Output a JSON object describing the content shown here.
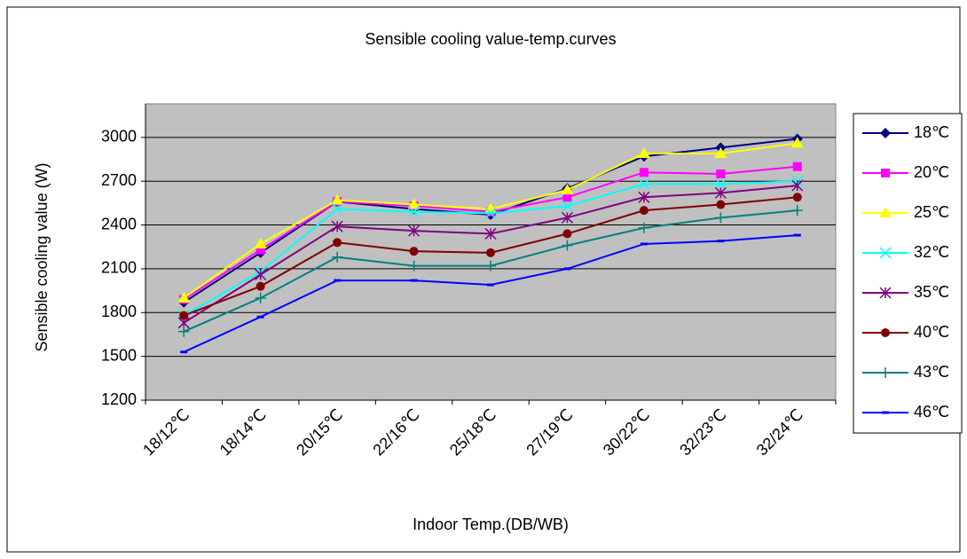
{
  "chart_data": {
    "type": "line",
    "title": "Sensible cooling value-temp.curves",
    "x_label": "Indoor Temp.(DB/WB)",
    "y_label": "Sensible cooling value (W)",
    "categories": [
      "18/12℃",
      "18/14℃",
      "20/15℃",
      "22/16℃",
      "25/18℃",
      "27/19℃",
      "30/22℃",
      "32/23℃",
      "32/24℃"
    ],
    "ylim": [
      1200,
      3230
    ],
    "yticks": [
      1200,
      1500,
      1800,
      2100,
      2400,
      2700,
      3000
    ],
    "grid": true,
    "legend": "right",
    "series": [
      {
        "name": "18℃",
        "color": "#000080",
        "marker": "diamond",
        "values": [
          1870,
          2210,
          2560,
          2510,
          2470,
          2650,
          2870,
          2930,
          2990
        ]
      },
      {
        "name": "20℃",
        "color": "#ff00ff",
        "marker": "square",
        "values": [
          1890,
          2230,
          2560,
          2530,
          2490,
          2590,
          2760,
          2750,
          2800
        ]
      },
      {
        "name": "25℃",
        "color": "#ffff00",
        "marker": "triangle",
        "values": [
          1900,
          2270,
          2570,
          2540,
          2510,
          2640,
          2890,
          2890,
          2960
        ]
      },
      {
        "name": "32℃",
        "color": "#00ffff",
        "marker": "x",
        "values": [
          1780,
          2080,
          2510,
          2490,
          2480,
          2530,
          2680,
          2680,
          2700
        ]
      },
      {
        "name": "35℃",
        "color": "#800080",
        "marker": "star",
        "values": [
          1730,
          2060,
          2390,
          2360,
          2340,
          2450,
          2590,
          2620,
          2670
        ]
      },
      {
        "name": "40℃",
        "color": "#800000",
        "marker": "circle",
        "values": [
          1780,
          1980,
          2280,
          2220,
          2210,
          2340,
          2500,
          2540,
          2590
        ]
      },
      {
        "name": "43℃",
        "color": "#008080",
        "marker": "plus",
        "values": [
          1670,
          1900,
          2180,
          2120,
          2120,
          2260,
          2380,
          2450,
          2500
        ]
      },
      {
        "name": "46℃",
        "color": "#0000ff",
        "marker": "dash",
        "values": [
          1530,
          1770,
          2020,
          2020,
          1990,
          2100,
          2270,
          2290,
          2330
        ]
      }
    ]
  }
}
